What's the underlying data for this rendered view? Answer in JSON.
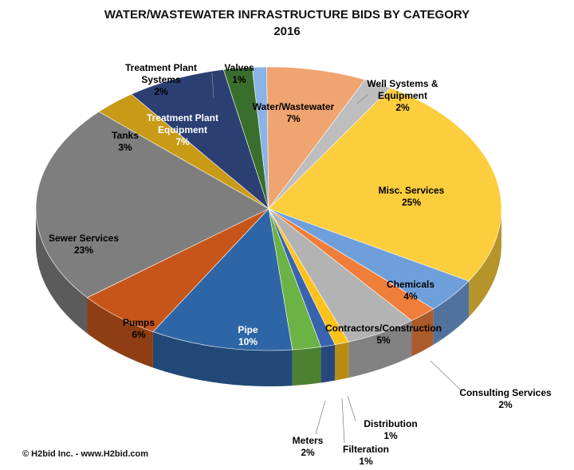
{
  "chart_data": {
    "type": "pie",
    "title": "WATER/WASTEWATER INFRASTRUCTURE BIDS BY CATEGORY",
    "subtitle": "2016",
    "slices": [
      {
        "name": "Water/Wastewater",
        "value": 7,
        "label": "7%",
        "color": "#F0A46F"
      },
      {
        "name": "Well Systems & Equipment",
        "value": 2,
        "label": "2%",
        "color": "#BEBEBE"
      },
      {
        "name": "Misc. Services",
        "value": 25,
        "label": "25%",
        "color": "#FCCD3D"
      },
      {
        "name": "Chemicals",
        "value": 4,
        "label": "4%",
        "color": "#6F9FDA"
      },
      {
        "name": "Consulting Services",
        "value": 2,
        "label": "2%",
        "color": "#EF7E3A"
      },
      {
        "name": "Contractors/Construction",
        "value": 5,
        "label": "5%",
        "color": "#B3B3B3"
      },
      {
        "name": "Distribution",
        "value": 1,
        "label": "1%",
        "color": "#FFC21A"
      },
      {
        "name": "Filteration",
        "value": 1,
        "label": "1%",
        "color": "#3A63AE"
      },
      {
        "name": "Meters",
        "value": 2,
        "label": "2%",
        "color": "#6BB344"
      },
      {
        "name": "Pipe",
        "value": 10,
        "label": "10%",
        "color": "#2E65A7"
      },
      {
        "name": "Pumps",
        "value": 6,
        "label": "6%",
        "color": "#C75519"
      },
      {
        "name": "Sewer Services",
        "value": 23,
        "label": "23%",
        "color": "#7E7E7E"
      },
      {
        "name": "Tanks",
        "value": 3,
        "label": "3%",
        "color": "#C99A15"
      },
      {
        "name": "Treatment Plant Equipment",
        "value": 7,
        "label": "7%",
        "color": "#2B3F73"
      },
      {
        "name": "Treatment Plant Systems",
        "value": 2,
        "label": "2%",
        "color": "#3A6E2C"
      },
      {
        "name": "Valves",
        "value": 1,
        "label": "1%",
        "color": "#8AB3E6"
      }
    ],
    "legend": "none"
  },
  "footer": {
    "credit": "© H2bid Inc. - www.H2bid.com"
  }
}
